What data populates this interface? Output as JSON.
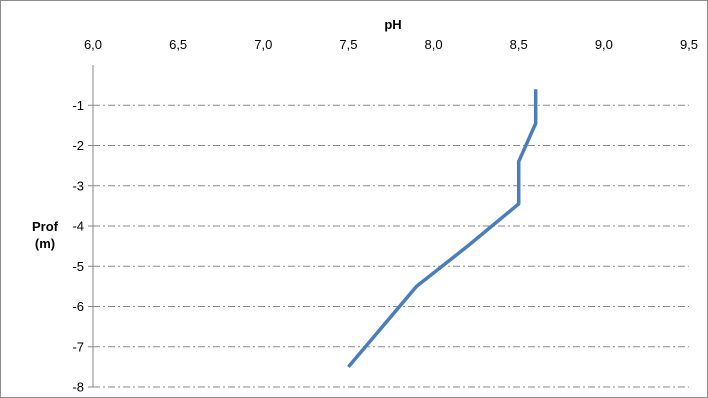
{
  "chart_data": {
    "type": "line",
    "x_title": "pH",
    "y_title_line1": "Prof",
    "y_title_line2": "(m)",
    "x_axis_position": "top",
    "xlim": [
      6.0,
      9.5
    ],
    "x_ticks": [
      6.0,
      6.5,
      7.0,
      7.5,
      8.0,
      8.5,
      9.0,
      9.5
    ],
    "x_tick_labels": [
      "6,0",
      "6,5",
      "7,0",
      "7,5",
      "8,0",
      "8,5",
      "9,0",
      "9,5"
    ],
    "ylim": [
      -8,
      0
    ],
    "y_ticks": [
      -1,
      -2,
      -3,
      -4,
      -5,
      -6,
      -7,
      -8
    ],
    "y_tick_labels": [
      "-1",
      "-2",
      "-3",
      "-4",
      "-5",
      "-6",
      "-7",
      "-8"
    ],
    "grid": "horizontal dash-dot",
    "series": [
      {
        "color": "#4a7ebb",
        "points": [
          {
            "x": 8.6,
            "y": -0.6
          },
          {
            "x": 8.6,
            "y": -1.45
          },
          {
            "x": 8.5,
            "y": -2.4
          },
          {
            "x": 8.5,
            "y": -3.45
          },
          {
            "x": 8.2,
            "y": -4.5
          },
          {
            "x": 7.9,
            "y": -5.5
          },
          {
            "x": 7.5,
            "y": -7.5
          }
        ]
      }
    ]
  }
}
